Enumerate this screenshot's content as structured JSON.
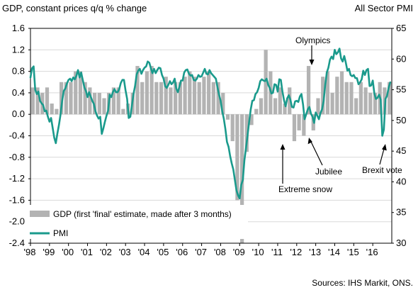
{
  "chart_data": {
    "type": "bar",
    "title_left": "GDP, constant prices q/q % change",
    "title_right": "All Sector PMI",
    "source": "Sources: IHS Markit, ONS.",
    "colors": {
      "gdp": "#b3b3b3",
      "pmi": "#1a9a8c"
    },
    "left_axis": {
      "min": -2.4,
      "max": 1.6,
      "ticks": [
        "1.6",
        "1.2",
        "0.8",
        "0.4",
        "0.0",
        "-0.4",
        "-0.8",
        "-1.2",
        "-1.6",
        "-2.0",
        "-2.4"
      ]
    },
    "right_axis": {
      "min": 30,
      "max": 65,
      "ticks": [
        "65",
        "60",
        "55",
        "50",
        "45",
        "40",
        "35",
        "30"
      ]
    },
    "x_axis": {
      "start_year": 1998,
      "end_year": 2017,
      "labels": [
        "'98",
        "'99",
        "'00",
        "'01",
        "'02",
        "'03",
        "'04",
        "'05",
        "'06",
        "'07",
        "'08",
        "'09",
        "'10",
        "'11",
        "'12",
        "'13",
        "'14",
        "'15",
        "'16"
      ]
    },
    "legend": [
      "GDP (first 'final' estimate, made after 3 months)",
      "PMI"
    ],
    "annotations": [
      {
        "text": "Olympics",
        "t": 2012.55,
        "value": 0.9
      },
      {
        "text": "Extreme snow",
        "t": 2010.9,
        "value": -0.55
      },
      {
        "text": "Jubilee",
        "t": 2012.4,
        "value": -0.4
      },
      {
        "text": "Brexit vote",
        "t": 2016.55,
        "value": 46.5
      }
    ],
    "series": [
      {
        "name": "GDP (first 'final' estimate, made after 3 months)",
        "type": "bar",
        "values": [
          0.5,
          0.5,
          0.4,
          0.5,
          0.2,
          0.1,
          0.6,
          0.6,
          0.6,
          0.8,
          0.8,
          0.6,
          0.5,
          0.4,
          0.4,
          0.3,
          0.4,
          0.5,
          0.5,
          0.1,
          0.2,
          0.4,
          0.9,
          0.6,
          0.8,
          0.9,
          0.6,
          0.6,
          0.7,
          0.5,
          0.6,
          0.6,
          0.7,
          0.8,
          0.7,
          0.6,
          0.7,
          0.8,
          0.6,
          0.6,
          0.4,
          -0.1,
          -0.5,
          -1.6,
          -2.4,
          -0.7,
          -0.2,
          0.1,
          0.3,
          1.2,
          0.8,
          0.3,
          0.5,
          0.2,
          0.5,
          -0.5,
          -0.3,
          -0.4,
          0.9,
          -0.3,
          0.3,
          0.7,
          0.8,
          0.4,
          0.7,
          0.8,
          0.6,
          0.6,
          0.3,
          0.6,
          0.5,
          0.4,
          0.4,
          0.6,
          0.5,
          0.6
        ]
      },
      {
        "name": "PMI",
        "type": "line",
        "x_start": 1998.0,
        "x_step": 0.0833333,
        "values": [
          57,
          58.5,
          58.8,
          55,
          54.3,
          54.7,
          53.2,
          52.8,
          52.5,
          51.5,
          51.6,
          50.6,
          49.8,
          50.4,
          48.8,
          47.2,
          46.3,
          47.9,
          49.3,
          51,
          53.2,
          54.8,
          55.2,
          56,
          56.6,
          56.8,
          56.4,
          57,
          56.7,
          57.3,
          58.2,
          57,
          57.8,
          56.6,
          55.4,
          54.8,
          53.8,
          54.6,
          53.9,
          53.2,
          52.7,
          51.5,
          50.8,
          50.3,
          50.6,
          47.8,
          48.7,
          49.8,
          50.8,
          51.6,
          54.2,
          53.8,
          54.6,
          55.1,
          54.6,
          54.6,
          55.1,
          56.1,
          56.6,
          56.6,
          54.9,
          53.5,
          50.4,
          50.6,
          52.4,
          54.3,
          55.6,
          57.5,
          58.1,
          58.4,
          57.6,
          58.2,
          58.6,
          58.8,
          59.6,
          59.4,
          58.5,
          57.7,
          58.4,
          57.7,
          58.2,
          58.6,
          58.5,
          57.4,
          56.8,
          55.6,
          55.3,
          55.8,
          56.4,
          55.9,
          56.2,
          56.8,
          55.2,
          54.6,
          55.5,
          56.5,
          56.5,
          57.8,
          58.2,
          58.3,
          57.6,
          57.3,
          57.4,
          56.6,
          56.5,
          56.8,
          57.4,
          57.1,
          57.2,
          57.8,
          58.4,
          57.6,
          57.5,
          58.2,
          57.7,
          57.4,
          57.1,
          56.8,
          55.4,
          54.2,
          53.2,
          51.5,
          50.3,
          48.6,
          46.5,
          45.7,
          44.2,
          43,
          42,
          40.3,
          38.6,
          37.8,
          37.3,
          39.5,
          40.3,
          43.5,
          45.5,
          47.6,
          49.8,
          51.8,
          53.2,
          53.3,
          54.3,
          54.6,
          55.3,
          56.4,
          56.7,
          56.5,
          56.4,
          56.8,
          55.8,
          55.3,
          54.4,
          54.5,
          55.9,
          55.8,
          54.7,
          56.7,
          56.6,
          54.7,
          53.3,
          52.3,
          53.6,
          54.1,
          53.4,
          52.2,
          52.1,
          53.1,
          53.2,
          53,
          53.9,
          54.3,
          52.6,
          50.2,
          51,
          51.8,
          52.2,
          51.1,
          50.6,
          49.6,
          51.3,
          50.8,
          50.2,
          51.2,
          51.8,
          53.2,
          55.8,
          57.8,
          58.6,
          59.9,
          60.4,
          60,
          61.5,
          60.8,
          61.1,
          61.7,
          60.1,
          59.6,
          60.5,
          59.4,
          58.1,
          58.4,
          57.4,
          57.2,
          57.4,
          56.9,
          56.9,
          55.9,
          56.2,
          56.7,
          58.1,
          57.4,
          58.2,
          58.4,
          55.6,
          55.7,
          56.5,
          54.4,
          53.5,
          53.7,
          54.2,
          53.4,
          47.5,
          48.5,
          53.5,
          54,
          55.3,
          56.2
        ]
      }
    ]
  }
}
